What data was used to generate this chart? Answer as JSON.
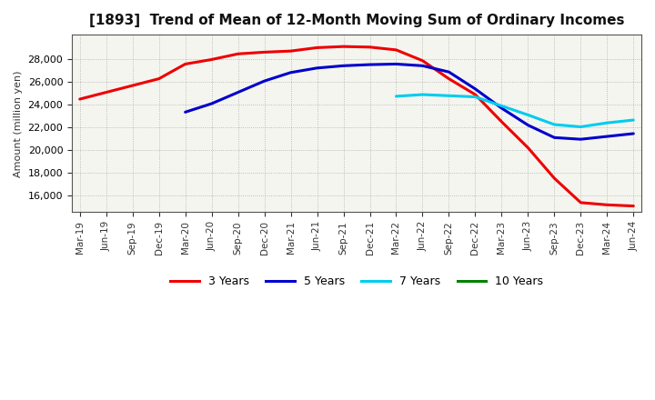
{
  "title": "[1893]  Trend of Mean of 12-Month Moving Sum of Ordinary Incomes",
  "ylabel": "Amount (million yen)",
  "background_color": "#ffffff",
  "plot_bg_color": "#f5f5f0",
  "grid_color": "#999999",
  "ylim": [
    14500,
    30200
  ],
  "yticks": [
    16000,
    18000,
    20000,
    22000,
    24000,
    26000,
    28000
  ],
  "x_labels": [
    "Mar-19",
    "Jun-19",
    "Sep-19",
    "Dec-19",
    "Mar-20",
    "Jun-20",
    "Sep-20",
    "Dec-20",
    "Mar-21",
    "Jun-21",
    "Sep-21",
    "Dec-21",
    "Mar-22",
    "Jun-22",
    "Sep-22",
    "Dec-22",
    "Mar-23",
    "Jun-23",
    "Sep-23",
    "Dec-23",
    "Mar-24",
    "Jun-24"
  ],
  "series": {
    "3 Years": {
      "color": "#ee0000",
      "data_x": [
        0,
        1,
        2,
        3,
        4,
        5,
        6,
        7,
        8,
        9,
        10,
        11,
        12,
        13,
        14,
        15,
        16,
        17,
        18,
        19,
        20,
        21
      ],
      "data_y": [
        24500,
        25100,
        25700,
        26300,
        27600,
        28000,
        28500,
        28650,
        28750,
        29050,
        29150,
        29100,
        28850,
        27900,
        26300,
        24900,
        22500,
        20200,
        17500,
        15350,
        15150,
        15050
      ]
    },
    "5 Years": {
      "color": "#0000cc",
      "data_x": [
        4,
        5,
        6,
        7,
        8,
        9,
        10,
        11,
        12,
        13,
        14,
        15,
        16,
        17,
        18,
        19,
        20,
        21
      ],
      "data_y": [
        23350,
        24100,
        25100,
        26100,
        26850,
        27250,
        27450,
        27550,
        27600,
        27450,
        26900,
        25400,
        23700,
        22200,
        21100,
        20950,
        21200,
        21450
      ]
    },
    "7 Years": {
      "color": "#00ccee",
      "data_x": [
        12,
        13,
        14,
        15,
        16,
        17,
        18,
        19,
        20,
        21
      ],
      "data_y": [
        24750,
        24900,
        24800,
        24700,
        23900,
        23100,
        22250,
        22050,
        22400,
        22650
      ]
    },
    "10 Years": {
      "color": "#008000",
      "data_x": [],
      "data_y": []
    }
  },
  "legend_entries": [
    "3 Years",
    "5 Years",
    "7 Years",
    "10 Years"
  ],
  "legend_colors": [
    "#ee0000",
    "#0000cc",
    "#00ccee",
    "#008000"
  ]
}
